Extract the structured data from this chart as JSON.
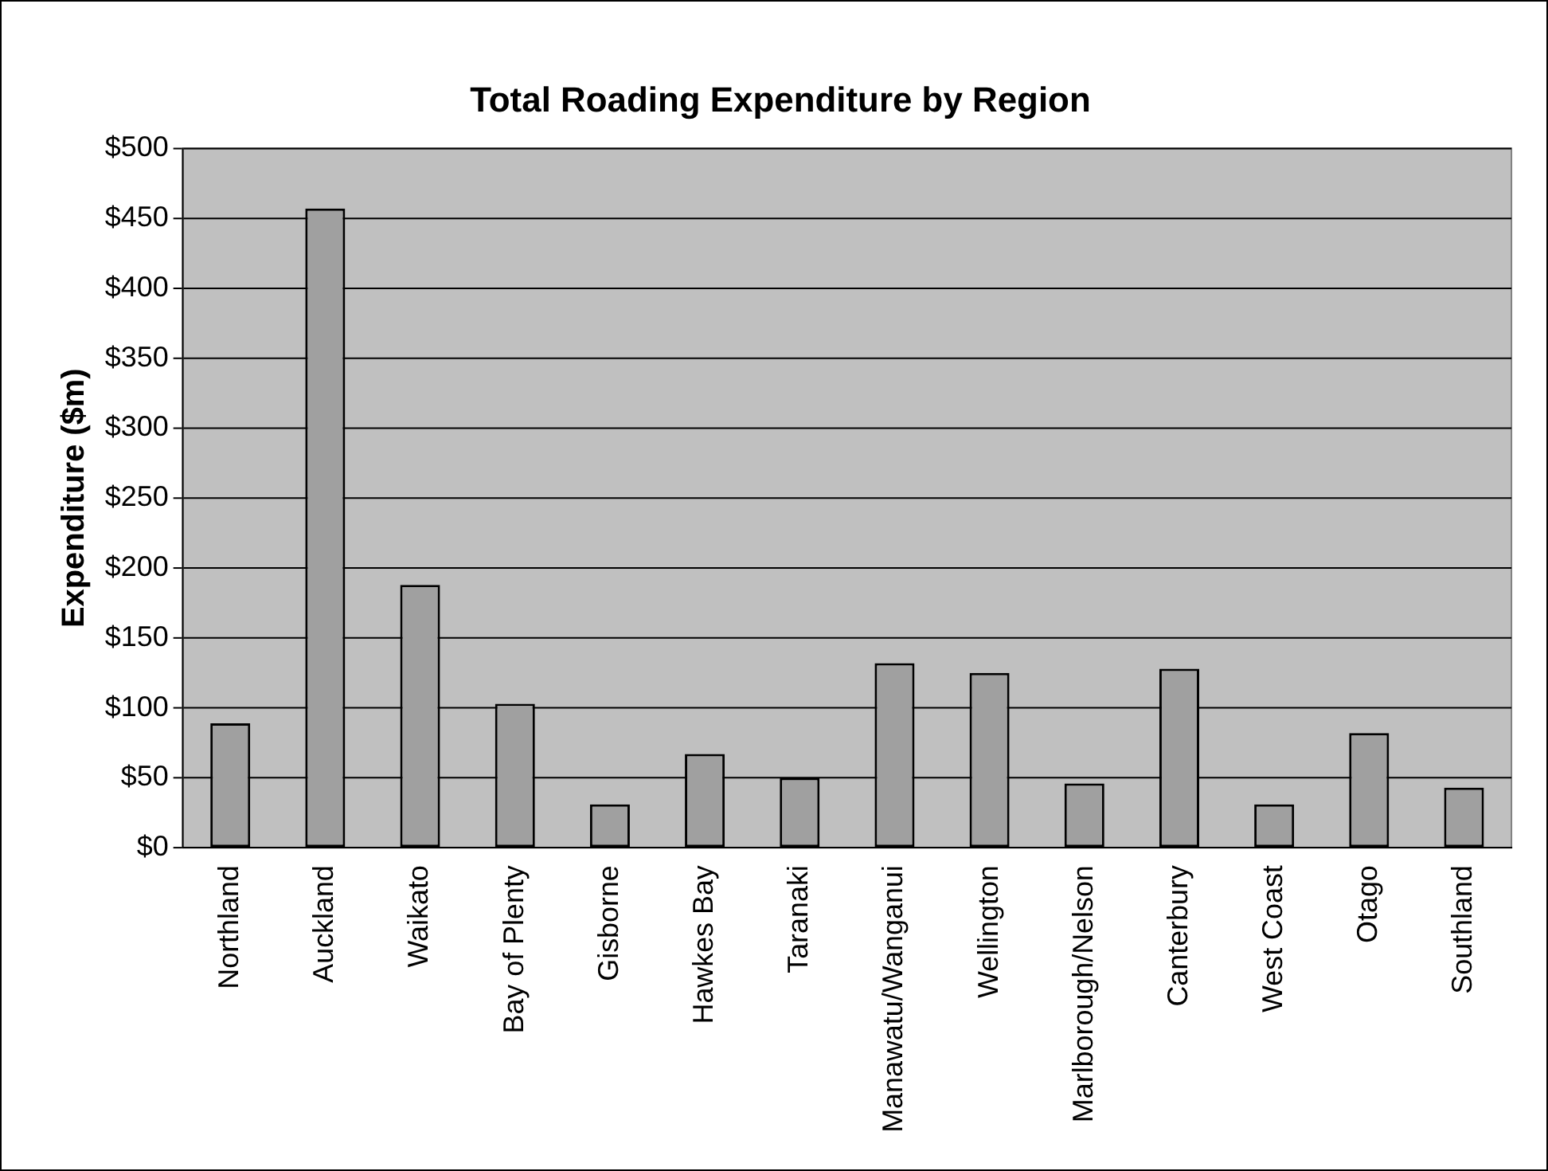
{
  "chart_data": {
    "type": "bar",
    "title": "Total Roading Expenditure by Region",
    "ylabel": "Expenditure ($m)",
    "categories": [
      "Northland",
      "Auckland",
      "Waikato",
      "Bay of Plenty",
      "Gisborne",
      "Hawkes Bay",
      "Taranaki",
      "Manawatu/Wanganui",
      "Wellington",
      "Marlborough/Nelson",
      "Canterbury",
      "West Coast",
      "Otago",
      "Southland"
    ],
    "values": [
      89,
      457,
      188,
      103,
      31,
      67,
      50,
      132,
      125,
      46,
      128,
      31,
      82,
      43
    ],
    "color": "#a0a0a0",
    "ylim": [
      0,
      500
    ],
    "yticks": [
      {
        "value": 0,
        "label": "$0"
      },
      {
        "value": 50,
        "label": "$50"
      },
      {
        "value": 100,
        "label": "$100"
      },
      {
        "value": 150,
        "label": "$150"
      },
      {
        "value": 200,
        "label": "$200"
      },
      {
        "value": 250,
        "label": "$250"
      },
      {
        "value": 300,
        "label": "$300"
      },
      {
        "value": 350,
        "label": "$350"
      },
      {
        "value": 400,
        "label": "$400"
      },
      {
        "value": 450,
        "label": "$450"
      },
      {
        "value": 500,
        "label": "$500"
      }
    ],
    "grid": "y",
    "legend": false
  }
}
